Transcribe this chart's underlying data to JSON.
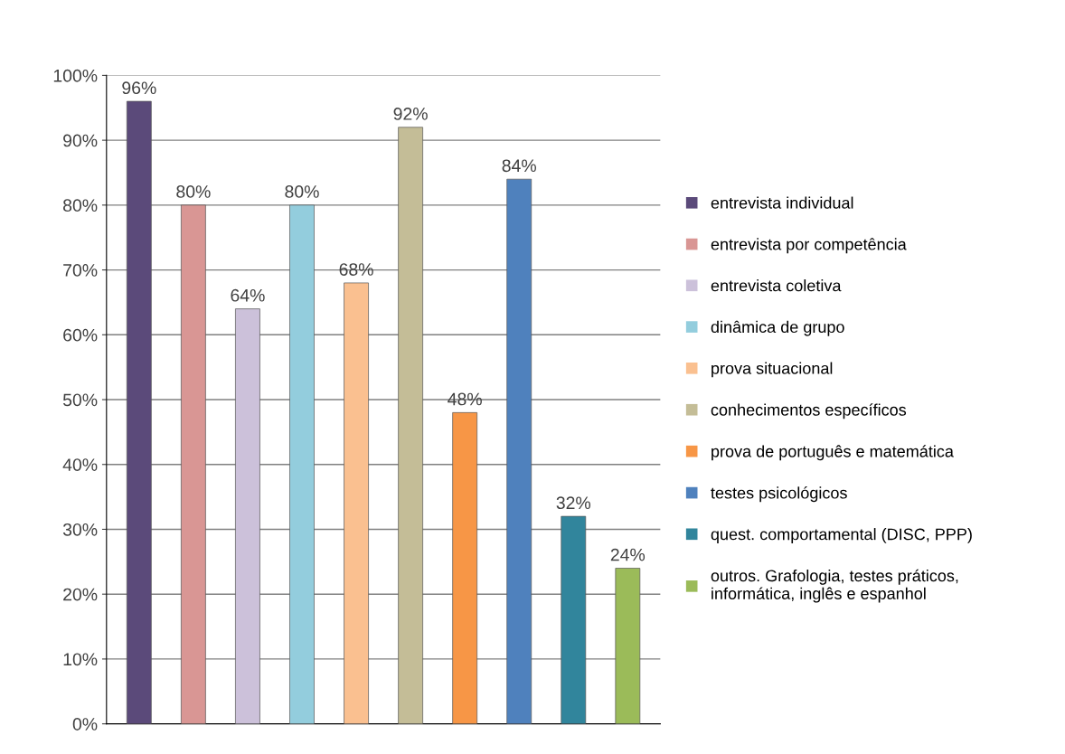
{
  "chart_data": {
    "type": "bar",
    "categories": [
      null,
      null,
      null,
      null,
      null,
      null,
      null,
      null,
      null,
      null
    ],
    "series": [
      {
        "name": "entrevista individual",
        "color": "#5b4a7a",
        "values": [
          96,
          null,
          null,
          null,
          null,
          null,
          null,
          null,
          null,
          null
        ],
        "value_labels": [
          "96%",
          null,
          null,
          null,
          null,
          null,
          null,
          null,
          null,
          null
        ]
      },
      {
        "name": "entrevista por competência",
        "color": "#d99694",
        "values": [
          null,
          80,
          null,
          null,
          null,
          null,
          null,
          null,
          null,
          null
        ],
        "value_labels": [
          null,
          "80%",
          null,
          null,
          null,
          null,
          null,
          null,
          null,
          null
        ]
      },
      {
        "name": "entrevista coletiva",
        "color": "#ccc1da",
        "values": [
          null,
          null,
          64,
          null,
          null,
          null,
          null,
          null,
          null,
          null
        ],
        "value_labels": [
          null,
          null,
          "64%",
          null,
          null,
          null,
          null,
          null,
          null,
          null
        ]
      },
      {
        "name": "dinâmica de grupo",
        "color": "#93cddd",
        "values": [
          null,
          null,
          null,
          80,
          null,
          null,
          null,
          null,
          null,
          null
        ],
        "value_labels": [
          null,
          null,
          null,
          "80%",
          null,
          null,
          null,
          null,
          null,
          null
        ]
      },
      {
        "name": "prova situacional",
        "color": "#fac090",
        "values": [
          null,
          null,
          null,
          null,
          68,
          null,
          null,
          null,
          null,
          null
        ],
        "value_labels": [
          null,
          null,
          null,
          null,
          "68%",
          null,
          null,
          null,
          null,
          null
        ]
      },
      {
        "name": "conhecimentos específicos",
        "color": "#c4bd97",
        "values": [
          null,
          null,
          null,
          null,
          null,
          92,
          null,
          null,
          null,
          null
        ],
        "value_labels": [
          null,
          null,
          null,
          null,
          null,
          "92%",
          null,
          null,
          null,
          null
        ]
      },
      {
        "name": "prova de português e matemática",
        "color": "#f79646",
        "values": [
          null,
          null,
          null,
          null,
          null,
          null,
          48,
          null,
          null,
          null
        ],
        "value_labels": [
          null,
          null,
          null,
          null,
          null,
          null,
          "48%",
          null,
          null,
          null
        ]
      },
      {
        "name": "testes psicológicos",
        "color": "#4f81bd",
        "values": [
          null,
          null,
          null,
          null,
          null,
          null,
          null,
          84,
          null,
          null
        ],
        "value_labels": [
          null,
          null,
          null,
          null,
          null,
          null,
          null,
          "84%",
          null,
          null
        ]
      },
      {
        "name": "quest. comportamental (DISC, PPP)",
        "color": "#31859c",
        "values": [
          null,
          null,
          null,
          null,
          null,
          null,
          null,
          null,
          32,
          null
        ],
        "value_labels": [
          null,
          null,
          null,
          null,
          null,
          null,
          null,
          null,
          "32%",
          null
        ]
      },
      {
        "name": "outros. Grafologia, testes práticos,\ninformática, inglês e espanhol",
        "color": "#9bbb59",
        "values": [
          null,
          null,
          null,
          null,
          null,
          null,
          null,
          null,
          null,
          24
        ],
        "value_labels": [
          null,
          null,
          null,
          null,
          null,
          null,
          null,
          null,
          null,
          "24%"
        ]
      }
    ],
    "ylim": [
      0,
      100
    ],
    "yticks": [
      {
        "value": 0,
        "label": "0%"
      },
      {
        "value": 10,
        "label": "10%"
      },
      {
        "value": 20,
        "label": "20%"
      },
      {
        "value": 30,
        "label": "30%"
      },
      {
        "value": 40,
        "label": "40%"
      },
      {
        "value": 50,
        "label": "50%"
      },
      {
        "value": 60,
        "label": "60%"
      },
      {
        "value": 70,
        "label": "70%"
      },
      {
        "value": 80,
        "label": "80%"
      },
      {
        "value": 90,
        "label": "90%"
      },
      {
        "value": 100,
        "label": "100%"
      }
    ],
    "grid": "y",
    "legend": "right"
  }
}
